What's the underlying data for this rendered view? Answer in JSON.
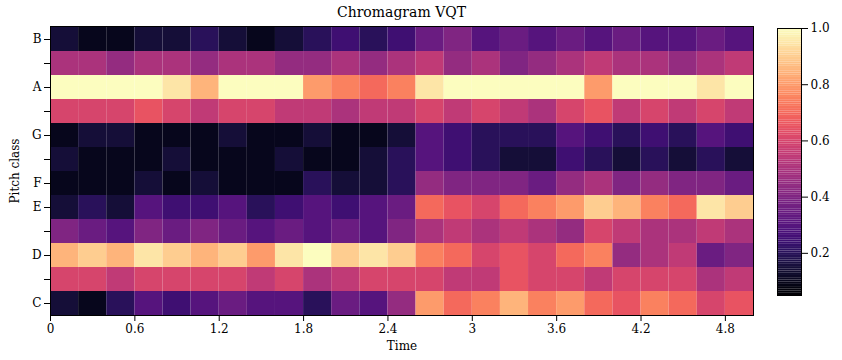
{
  "chart_data": {
    "type": "heatmap",
    "title": "Chromagram VQT",
    "x_label": "Time",
    "y_label": "Pitch class",
    "x": [
      0,
      0.2,
      0.4,
      0.6,
      0.8,
      1.0,
      1.2,
      1.4,
      1.6,
      1.8,
      2.0,
      2.2,
      2.4,
      2.6,
      2.8,
      3.0,
      3.2,
      3.4,
      3.6,
      3.8,
      4.0,
      4.2,
      4.4,
      4.6,
      4.8
    ],
    "categories": [
      "C",
      null,
      "D",
      null,
      "E",
      "F",
      null,
      "G",
      null,
      "A",
      null,
      "B"
    ],
    "values": [
      [
        0.15,
        0.1,
        0.2,
        0.3,
        0.25,
        0.3,
        0.35,
        0.3,
        0.3,
        0.2,
        0.35,
        0.3,
        0.45,
        0.8,
        0.7,
        0.75,
        0.85,
        0.75,
        0.8,
        0.7,
        0.65,
        0.75,
        0.7,
        0.6,
        0.65
      ],
      [
        0.6,
        0.6,
        0.55,
        0.6,
        0.6,
        0.6,
        0.6,
        0.55,
        0.6,
        0.5,
        0.55,
        0.6,
        0.6,
        0.6,
        0.55,
        0.55,
        0.65,
        0.6,
        0.6,
        0.55,
        0.6,
        0.6,
        0.6,
        0.5,
        0.55
      ],
      [
        0.85,
        0.9,
        0.85,
        0.95,
        0.9,
        0.85,
        0.9,
        0.8,
        0.95,
        1.0,
        0.9,
        0.95,
        0.9,
        0.75,
        0.7,
        0.6,
        0.65,
        0.6,
        0.7,
        0.75,
        0.45,
        0.5,
        0.55,
        0.35,
        0.4
      ],
      [
        0.4,
        0.35,
        0.3,
        0.4,
        0.35,
        0.4,
        0.35,
        0.3,
        0.35,
        0.3,
        0.35,
        0.3,
        0.4,
        0.5,
        0.55,
        0.5,
        0.55,
        0.5,
        0.45,
        0.6,
        0.55,
        0.5,
        0.5,
        0.55,
        0.5
      ],
      [
        0.15,
        0.2,
        0.15,
        0.3,
        0.25,
        0.25,
        0.3,
        0.2,
        0.25,
        0.3,
        0.25,
        0.3,
        0.35,
        0.7,
        0.65,
        0.6,
        0.7,
        0.75,
        0.8,
        0.9,
        0.85,
        0.75,
        0.7,
        0.95,
        0.9
      ],
      [
        0.1,
        0.1,
        0.1,
        0.15,
        0.1,
        0.15,
        0.1,
        0.1,
        0.1,
        0.2,
        0.15,
        0.15,
        0.2,
        0.45,
        0.4,
        0.4,
        0.4,
        0.35,
        0.45,
        0.5,
        0.4,
        0.45,
        0.4,
        0.4,
        0.35
      ],
      [
        0.15,
        0.1,
        0.1,
        0.1,
        0.15,
        0.1,
        0.1,
        0.1,
        0.15,
        0.1,
        0.1,
        0.15,
        0.2,
        0.3,
        0.25,
        0.2,
        0.15,
        0.15,
        0.25,
        0.2,
        0.15,
        0.2,
        0.15,
        0.2,
        0.15
      ],
      [
        0.1,
        0.15,
        0.15,
        0.1,
        0.1,
        0.1,
        0.15,
        0.1,
        0.1,
        0.15,
        0.1,
        0.1,
        0.15,
        0.3,
        0.25,
        0.2,
        0.2,
        0.2,
        0.3,
        0.25,
        0.2,
        0.25,
        0.2,
        0.3,
        0.25
      ],
      [
        0.6,
        0.6,
        0.6,
        0.65,
        0.6,
        0.55,
        0.6,
        0.6,
        0.55,
        0.55,
        0.5,
        0.55,
        0.55,
        0.6,
        0.55,
        0.6,
        0.55,
        0.5,
        0.6,
        0.65,
        0.55,
        0.6,
        0.55,
        0.6,
        0.55
      ],
      [
        1,
        1,
        1,
        1,
        0.95,
        0.85,
        1,
        1,
        1,
        0.8,
        0.75,
        0.7,
        0.75,
        0.95,
        1,
        1,
        1,
        1,
        1,
        0.8,
        1,
        1,
        1,
        0.95,
        1
      ],
      [
        0.5,
        0.5,
        0.45,
        0.5,
        0.5,
        0.45,
        0.5,
        0.5,
        0.45,
        0.45,
        0.5,
        0.45,
        0.5,
        0.55,
        0.45,
        0.5,
        0.4,
        0.45,
        0.5,
        0.55,
        0.5,
        0.5,
        0.45,
        0.5,
        0.55
      ],
      [
        0.15,
        0.1,
        0.1,
        0.15,
        0.15,
        0.2,
        0.15,
        0.1,
        0.15,
        0.2,
        0.25,
        0.2,
        0.25,
        0.35,
        0.4,
        0.3,
        0.35,
        0.3,
        0.35,
        0.3,
        0.35,
        0.3,
        0.3,
        0.35,
        0.3
      ]
    ],
    "xlim": [
      0,
      5.0
    ],
    "xticks": [
      0,
      0.6,
      1.2,
      1.8,
      2.4,
      3,
      3.6,
      4.2,
      4.8
    ],
    "color": "magma",
    "color_range": [
      0.05,
      1
    ],
    "color_ticks": [
      0.2,
      0.4,
      0.6,
      0.8,
      {
        "value": 1,
        "label": "1.0"
      }
    ]
  }
}
